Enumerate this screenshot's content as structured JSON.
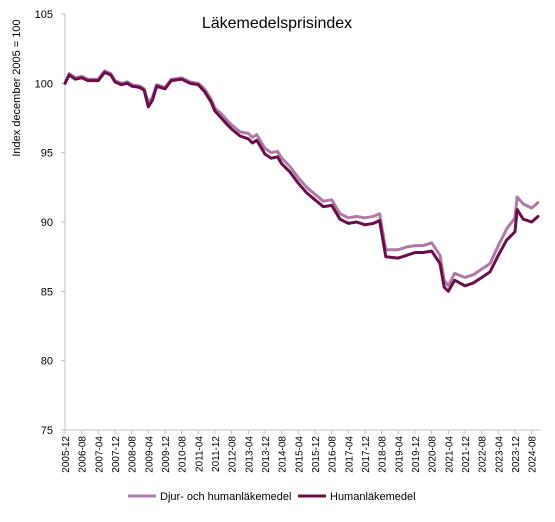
{
  "chart_data": {
    "type": "line",
    "title": "Läkemedelsprisindex",
    "xlabel": "",
    "ylabel": "Index december 2005 = 100",
    "ylim": [
      75,
      105
    ],
    "yticks": [
      75,
      80,
      85,
      90,
      95,
      100,
      105
    ],
    "grid": false,
    "legend_position": "bottom",
    "x_tick_labels": [
      "2005-12",
      "2006-08",
      "2007-04",
      "2007-12",
      "2008-08",
      "2009-04",
      "2009-12",
      "2010-08",
      "2011-04",
      "2011-12",
      "2012-08",
      "2013-04",
      "2013-12",
      "2014-08",
      "2015-04",
      "2015-12",
      "2016-08",
      "2017-04",
      "2017-12",
      "2018-08",
      "2019-04",
      "2019-12",
      "2020-08",
      "2021-04",
      "2021-12",
      "2022-08",
      "2023-04",
      "2023-12",
      "2024-08"
    ],
    "series": [
      {
        "name": "Djur- och humanläkemedel",
        "color": "#b07aa8",
        "points": [
          [
            "2005-12",
            100.0
          ],
          [
            "2006-02",
            100.7
          ],
          [
            "2006-05",
            100.4
          ],
          [
            "2006-08",
            100.5
          ],
          [
            "2006-11",
            100.3
          ],
          [
            "2007-04",
            100.3
          ],
          [
            "2007-07",
            100.9
          ],
          [
            "2007-10",
            100.7
          ],
          [
            "2007-12",
            100.2
          ],
          [
            "2008-03",
            100.0
          ],
          [
            "2008-06",
            100.1
          ],
          [
            "2008-08",
            99.9
          ],
          [
            "2008-12",
            99.8
          ],
          [
            "2009-02",
            99.6
          ],
          [
            "2009-04",
            98.6
          ],
          [
            "2009-06",
            99.0
          ],
          [
            "2009-08",
            99.9
          ],
          [
            "2009-12",
            99.7
          ],
          [
            "2010-03",
            100.3
          ],
          [
            "2010-08",
            100.4
          ],
          [
            "2010-12",
            100.1
          ],
          [
            "2011-04",
            100.0
          ],
          [
            "2011-07",
            99.6
          ],
          [
            "2011-10",
            98.9
          ],
          [
            "2011-12",
            98.2
          ],
          [
            "2012-03",
            97.8
          ],
          [
            "2012-06",
            97.3
          ],
          [
            "2012-08",
            97.0
          ],
          [
            "2012-12",
            96.5
          ],
          [
            "2013-04",
            96.4
          ],
          [
            "2013-06",
            96.1
          ],
          [
            "2013-08",
            96.3
          ],
          [
            "2013-12",
            95.3
          ],
          [
            "2014-03",
            95.0
          ],
          [
            "2014-06",
            95.1
          ],
          [
            "2014-08",
            94.6
          ],
          [
            "2014-12",
            94.0
          ],
          [
            "2015-04",
            93.2
          ],
          [
            "2015-08",
            92.5
          ],
          [
            "2015-12",
            92.0
          ],
          [
            "2016-04",
            91.5
          ],
          [
            "2016-08",
            91.6
          ],
          [
            "2016-12",
            90.6
          ],
          [
            "2017-04",
            90.3
          ],
          [
            "2017-08",
            90.4
          ],
          [
            "2017-12",
            90.3
          ],
          [
            "2018-04",
            90.4
          ],
          [
            "2018-07",
            90.6
          ],
          [
            "2018-10",
            88.0
          ],
          [
            "2019-04",
            88.0
          ],
          [
            "2019-08",
            88.2
          ],
          [
            "2019-12",
            88.3
          ],
          [
            "2020-04",
            88.3
          ],
          [
            "2020-08",
            88.5
          ],
          [
            "2020-12",
            87.6
          ],
          [
            "2021-02",
            85.8
          ],
          [
            "2021-04",
            85.4
          ],
          [
            "2021-07",
            86.3
          ],
          [
            "2021-12",
            86.0
          ],
          [
            "2022-04",
            86.2
          ],
          [
            "2022-08",
            86.6
          ],
          [
            "2022-12",
            87.0
          ],
          [
            "2023-04",
            88.3
          ],
          [
            "2023-08",
            89.5
          ],
          [
            "2023-12",
            90.3
          ],
          [
            "2024-01",
            91.8
          ],
          [
            "2024-04",
            91.3
          ],
          [
            "2024-08",
            91.0
          ],
          [
            "2024-11",
            91.4
          ]
        ]
      },
      {
        "name": "Humanläkemedel",
        "color": "#6b0d48",
        "points": [
          [
            "2005-12",
            100.0
          ],
          [
            "2006-02",
            100.6
          ],
          [
            "2006-05",
            100.3
          ],
          [
            "2006-08",
            100.4
          ],
          [
            "2006-11",
            100.2
          ],
          [
            "2007-04",
            100.2
          ],
          [
            "2007-07",
            100.8
          ],
          [
            "2007-10",
            100.6
          ],
          [
            "2007-12",
            100.1
          ],
          [
            "2008-03",
            99.9
          ],
          [
            "2008-06",
            100.0
          ],
          [
            "2008-08",
            99.8
          ],
          [
            "2008-12",
            99.7
          ],
          [
            "2009-02",
            99.5
          ],
          [
            "2009-04",
            98.3
          ],
          [
            "2009-06",
            98.8
          ],
          [
            "2009-08",
            99.8
          ],
          [
            "2009-12",
            99.6
          ],
          [
            "2010-03",
            100.2
          ],
          [
            "2010-08",
            100.3
          ],
          [
            "2010-12",
            100.0
          ],
          [
            "2011-04",
            99.9
          ],
          [
            "2011-07",
            99.4
          ],
          [
            "2011-10",
            98.7
          ],
          [
            "2011-12",
            98.0
          ],
          [
            "2012-03",
            97.5
          ],
          [
            "2012-06",
            97.0
          ],
          [
            "2012-08",
            96.7
          ],
          [
            "2012-12",
            96.2
          ],
          [
            "2013-04",
            96.0
          ],
          [
            "2013-06",
            95.7
          ],
          [
            "2013-08",
            95.9
          ],
          [
            "2013-12",
            94.9
          ],
          [
            "2014-03",
            94.6
          ],
          [
            "2014-06",
            94.7
          ],
          [
            "2014-08",
            94.2
          ],
          [
            "2014-12",
            93.6
          ],
          [
            "2015-04",
            92.8
          ],
          [
            "2015-08",
            92.1
          ],
          [
            "2015-12",
            91.6
          ],
          [
            "2016-04",
            91.1
          ],
          [
            "2016-08",
            91.2
          ],
          [
            "2016-12",
            90.2
          ],
          [
            "2017-04",
            89.9
          ],
          [
            "2017-08",
            90.0
          ],
          [
            "2017-12",
            89.8
          ],
          [
            "2018-04",
            89.9
          ],
          [
            "2018-07",
            90.1
          ],
          [
            "2018-10",
            87.5
          ],
          [
            "2019-04",
            87.4
          ],
          [
            "2019-08",
            87.6
          ],
          [
            "2019-12",
            87.8
          ],
          [
            "2020-04",
            87.8
          ],
          [
            "2020-08",
            87.9
          ],
          [
            "2020-12",
            87.0
          ],
          [
            "2021-02",
            85.3
          ],
          [
            "2021-04",
            85.0
          ],
          [
            "2021-07",
            85.8
          ],
          [
            "2021-12",
            85.4
          ],
          [
            "2022-04",
            85.6
          ],
          [
            "2022-08",
            86.0
          ],
          [
            "2022-12",
            86.4
          ],
          [
            "2023-04",
            87.6
          ],
          [
            "2023-08",
            88.7
          ],
          [
            "2023-12",
            89.3
          ],
          [
            "2024-01",
            90.9
          ],
          [
            "2024-04",
            90.2
          ],
          [
            "2024-08",
            90.0
          ],
          [
            "2024-11",
            90.4
          ]
        ]
      }
    ]
  }
}
